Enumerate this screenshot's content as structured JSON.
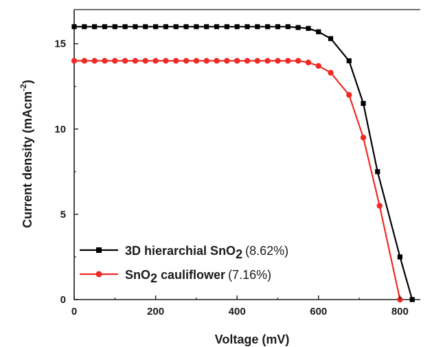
{
  "chart_data": {
    "type": "line",
    "xlabel": "Voltage (mV)",
    "ylabel_main": "Current density (mAcm",
    "ylabel_sup": "-2",
    "ylabel_close": ")",
    "xlim": [
      0,
      850
    ],
    "ylim": [
      0,
      17
    ],
    "x_ticks": [
      0,
      200,
      400,
      600,
      800
    ],
    "y_ticks": [
      0,
      5,
      10,
      15
    ],
    "legend_position": "bottom-left",
    "series": [
      {
        "name_main": "3D hierarchial SnO",
        "name_sub": "2",
        "name_efficiency": "(8.62%)",
        "color": "#000000",
        "marker": "square",
        "x": [
          0,
          25,
          50,
          75,
          100,
          125,
          150,
          175,
          200,
          225,
          250,
          275,
          300,
          325,
          350,
          375,
          400,
          425,
          450,
          475,
          500,
          525,
          550,
          575,
          600,
          630,
          675,
          710,
          745,
          800,
          830
        ],
        "y": [
          16,
          16,
          16,
          16,
          16,
          16,
          16,
          16,
          16,
          16,
          16,
          16,
          16,
          16,
          16,
          16,
          16,
          16,
          16,
          16,
          16,
          16,
          15.95,
          15.9,
          15.7,
          15.3,
          14,
          11.5,
          7.5,
          2.5,
          0
        ]
      },
      {
        "name_main": "SnO",
        "name_sub": "2",
        "name_rest": " cauliflower",
        "name_efficiency": "(7.16%)",
        "color": "#ee2a24",
        "marker": "circle",
        "x": [
          0,
          25,
          50,
          75,
          100,
          125,
          150,
          175,
          200,
          225,
          250,
          275,
          300,
          325,
          350,
          375,
          400,
          425,
          450,
          475,
          500,
          525,
          550,
          575,
          600,
          630,
          675,
          710,
          750,
          800
        ],
        "y": [
          14,
          14,
          14,
          14,
          14,
          14,
          14,
          14,
          14,
          14,
          14,
          14,
          14,
          14,
          14,
          14,
          14,
          14,
          14,
          14,
          14,
          14,
          14,
          13.9,
          13.7,
          13.3,
          12,
          9.5,
          5.5,
          0
        ]
      }
    ]
  }
}
